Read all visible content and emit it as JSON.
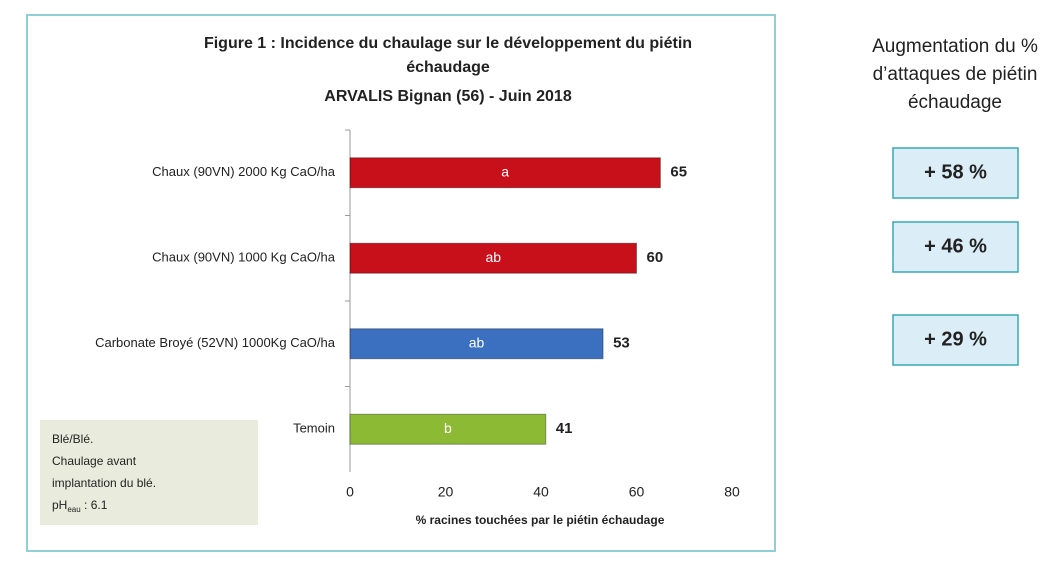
{
  "chart_data": {
    "type": "bar",
    "orientation": "horizontal",
    "title": [
      "Figure 1 : Incidence du chaulage sur le développement du piétin",
      "échaudage",
      "ARVALIS Bignan (56) - Juin 2018"
    ],
    "categories": [
      "Chaux (90VN) 2000 Kg CaO/ha",
      "Chaux (90VN) 1000 Kg CaO/ha",
      "Carbonate Broyé (52VN) 1000Kg CaO/ha",
      "Temoin"
    ],
    "values": [
      65,
      60,
      53,
      41
    ],
    "letters": [
      "a",
      "ab",
      "ab",
      "b"
    ],
    "colors": [
      "#c8101a",
      "#c8101a",
      "#3a70bf",
      "#8dba35"
    ],
    "xlim": [
      0,
      80
    ],
    "xticks": [
      0,
      20,
      40,
      60,
      80
    ],
    "x_label": "% racines touchées par le piétin échaudage",
    "note": {
      "lines": [
        "Blé/Blé.",
        "Chaulage avant",
        "implantation du blé."
      ],
      "ph": "pH",
      "ph_sub": "eau",
      "ph_rest": " : 6.1"
    }
  },
  "side": {
    "title": [
      "Augmentation du %",
      "d’attaques de piétin",
      "échaudage"
    ],
    "boxes": [
      "+ 58 %",
      "+ 46 %",
      "+ 29 %"
    ]
  }
}
